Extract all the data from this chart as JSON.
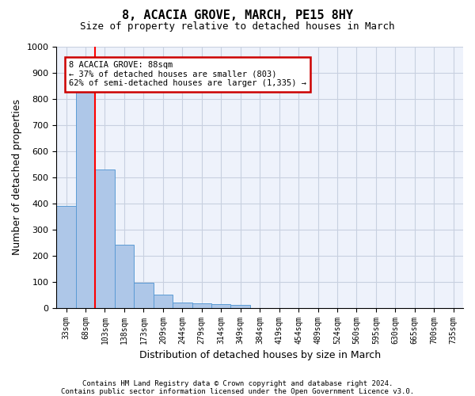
{
  "title_line1": "8, ACACIA GROVE, MARCH, PE15 8HY",
  "title_line2": "Size of property relative to detached houses in March",
  "xlabel": "Distribution of detached houses by size in March",
  "ylabel": "Number of detached properties",
  "bar_values": [
    390,
    830,
    530,
    242,
    97,
    52,
    20,
    18,
    14,
    10,
    0,
    0,
    0,
    0,
    0,
    0,
    0,
    0,
    0,
    0,
    0
  ],
  "bin_labels": [
    "33sqm",
    "68sqm",
    "103sqm",
    "138sqm",
    "173sqm",
    "209sqm",
    "244sqm",
    "279sqm",
    "314sqm",
    "349sqm",
    "384sqm",
    "419sqm",
    "454sqm",
    "489sqm",
    "524sqm",
    "560sqm",
    "595sqm",
    "630sqm",
    "665sqm",
    "700sqm",
    "735sqm"
  ],
  "bar_color": "#aec7e8",
  "bar_edge_color": "#5b9bd5",
  "background_color": "#eef2fb",
  "grid_color": "#c8d0e0",
  "ylim": [
    0,
    1000
  ],
  "yticks": [
    0,
    100,
    200,
    300,
    400,
    500,
    600,
    700,
    800,
    900,
    1000
  ],
  "red_line_x": 1.5,
  "annotation_text": "8 ACACIA GROVE: 88sqm\n← 37% of detached houses are smaller (803)\n62% of semi-detached houses are larger (1,335) →",
  "annotation_box_color": "#ffffff",
  "annotation_box_edge": "#cc0000",
  "footnote_line1": "Contains HM Land Registry data © Crown copyright and database right 2024.",
  "footnote_line2": "Contains public sector information licensed under the Open Government Licence v3.0."
}
